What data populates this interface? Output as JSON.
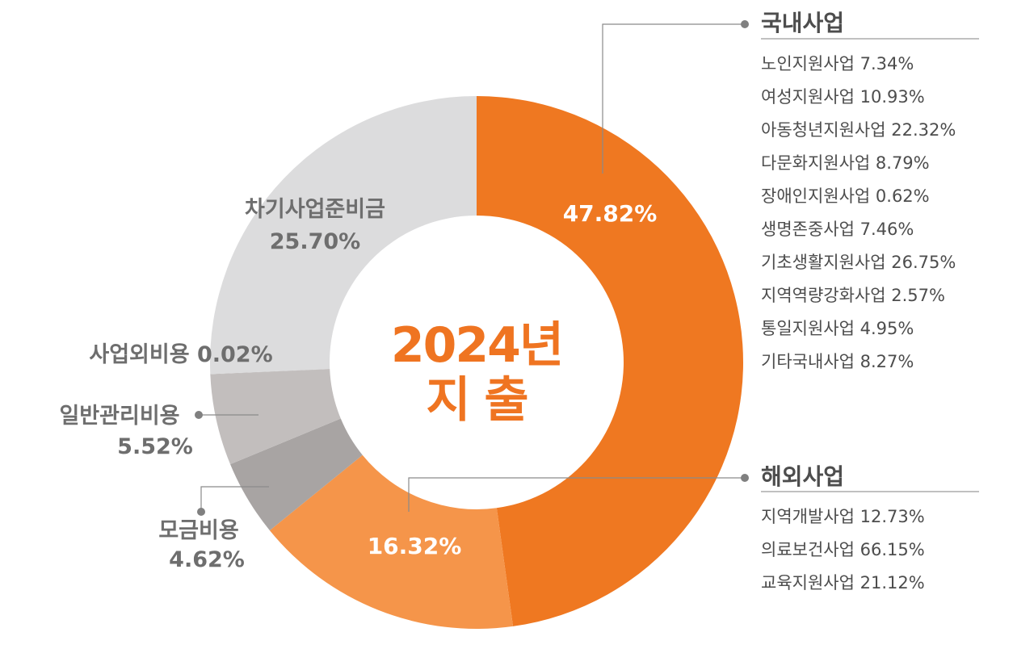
{
  "chart_data": {
    "type": "pie",
    "title": "2024년",
    "subtitle": "지 출",
    "slices": [
      {
        "label": "",
        "value": 47.82,
        "display": "47.82%",
        "color": "#ef7821"
      },
      {
        "label": "",
        "value": 16.32,
        "display": "16.32%",
        "color": "#f5954a"
      },
      {
        "label": "모금비용",
        "value": 4.62,
        "display": "4.62%",
        "color": "#a8a4a3"
      },
      {
        "label": "일반관리비용",
        "value": 5.52,
        "display": "5.52%",
        "color": "#c2bebd"
      },
      {
        "label": "사업외비용",
        "value": 0.02,
        "display": "0.02%",
        "color": "#b0acab"
      },
      {
        "label": "차기사업준비금",
        "value": 25.7,
        "display": "25.70%",
        "color": "#dcdcdd"
      }
    ],
    "external_labels": {
      "reserve": {
        "name": "차기사업준비금",
        "value": "25.70%"
      },
      "nonop": {
        "text": "사업외비용 0.02%"
      },
      "admin": {
        "name": "일반관리비용",
        "value": "5.52%"
      },
      "fund": {
        "name": "모금비용",
        "value": "4.62%"
      }
    },
    "groups": [
      {
        "title": "국내사업",
        "items": [
          "노인지원사업 7.34%",
          "여성지원사업 10.93%",
          "아동청년지원사업 22.32%",
          "다문화지원사업 8.79%",
          "장애인지원사업 0.62%",
          "생명존중사업 7.46%",
          "기초생활지원사업 26.75%",
          "지역역량강화사업 2.57%",
          "통일지원사업 4.95%",
          "기타국내사업 8.27%"
        ]
      },
      {
        "title": "해외사업",
        "items": [
          "지역개발사업 12.73%",
          "의료보건사업 66.15%",
          "교육지원사업 21.12%"
        ]
      }
    ]
  }
}
